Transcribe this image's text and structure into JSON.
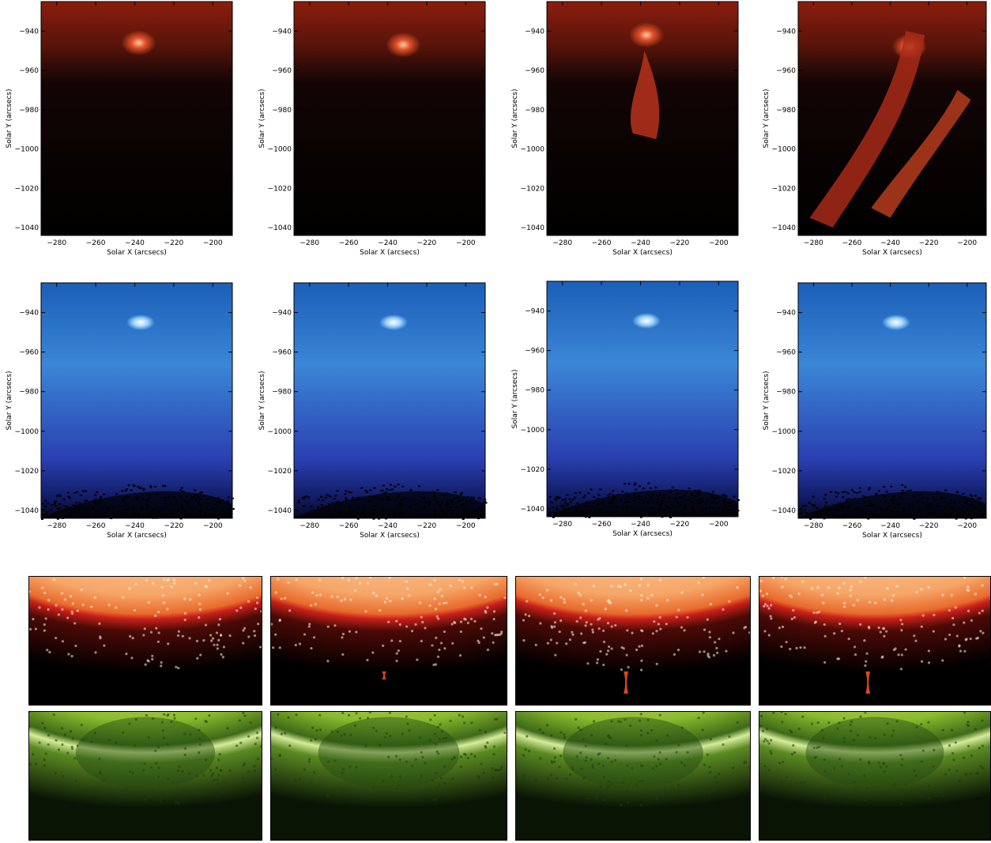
{
  "plot_axes": {
    "xlabel": "Solar X (arcsecs)",
    "ylabel": "Solar Y (arcsecs)",
    "x_ticks": [
      "−280",
      "−260",
      "−240",
      "−220",
      "−200"
    ],
    "y_ticks": [
      "−940",
      "−960",
      "−980",
      "−1000",
      "−1020",
      "−1040"
    ],
    "x_tick_values": [
      -280,
      -260,
      -240,
      -220,
      -200
    ],
    "y_tick_values": [
      -940,
      -960,
      -980,
      -1000,
      -1020,
      -1040
    ],
    "x_range": [
      -288,
      -190
    ],
    "y_range": [
      -925,
      -1044
    ]
  },
  "rows": {
    "red_plots": {
      "channel": "red-coronal-filter",
      "count": 4,
      "color": "#c0281a"
    },
    "blue_plots": {
      "channel": "blue-chromospheric-filter",
      "count": 4,
      "color": "#2f7ad6"
    },
    "orange_disk": {
      "channel": "orange-disk-images",
      "count": 4,
      "color": "#f4a160"
    },
    "green_disk": {
      "channel": "green-disk-images",
      "count": 4,
      "color": "#7bb32a"
    }
  }
}
